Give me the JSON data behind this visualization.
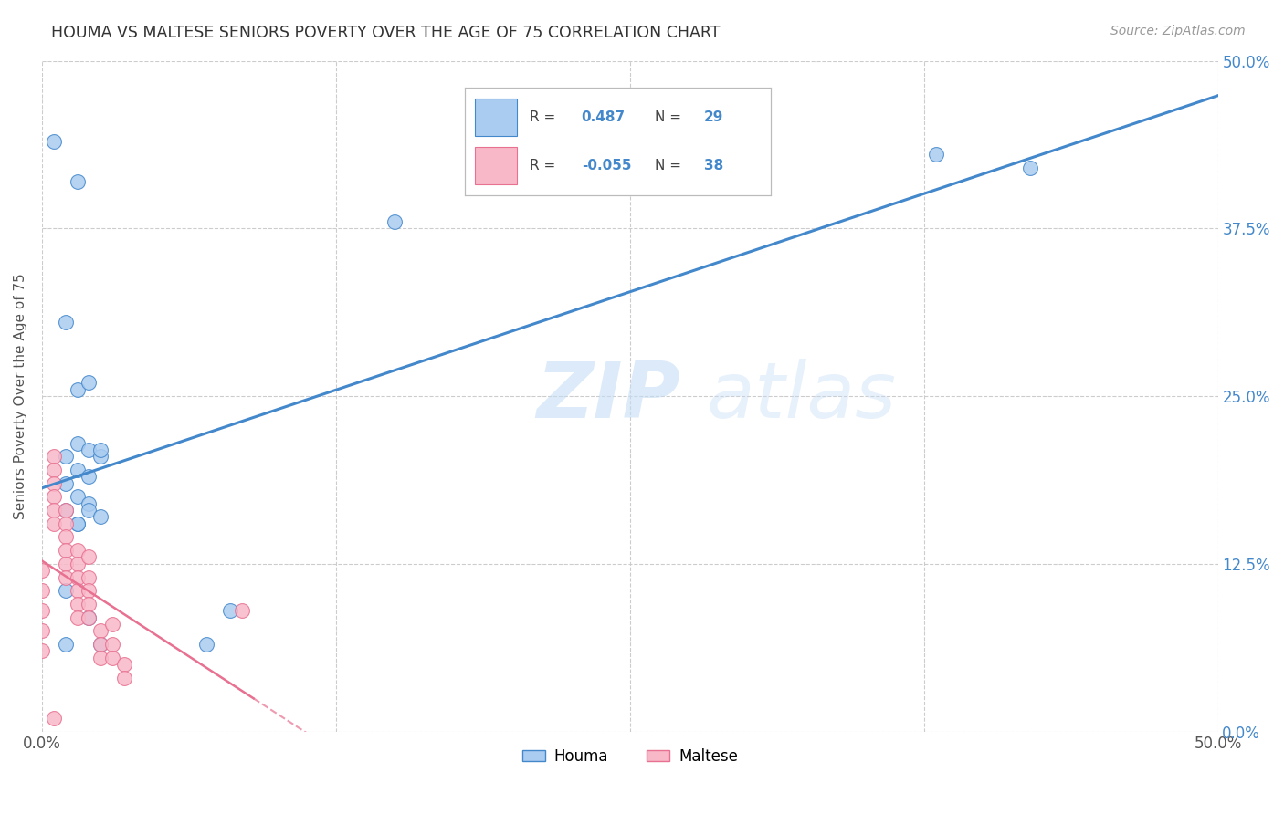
{
  "title": "HOUMA VS MALTESE SENIORS POVERTY OVER THE AGE OF 75 CORRELATION CHART",
  "source": "Source: ZipAtlas.com",
  "ylabel": "Seniors Poverty Over the Age of 75",
  "xlabel": "",
  "xlim": [
    0,
    0.5
  ],
  "ylim": [
    0,
    0.5
  ],
  "xtick_vals": [
    0.0,
    0.125,
    0.25,
    0.375,
    0.5
  ],
  "xtick_labels": [
    "0.0%",
    "",
    "",
    "",
    "50.0%"
  ],
  "ytick_vals": [
    0.0,
    0.125,
    0.25,
    0.375,
    0.5
  ],
  "ytick_labels_right": [
    "0.0%",
    "12.5%",
    "25.0%",
    "37.5%",
    "50.0%"
  ],
  "houma_R": 0.487,
  "houma_N": 29,
  "maltese_R": -0.055,
  "maltese_N": 38,
  "houma_color": "#aaccf0",
  "houma_line_color": "#4488cc",
  "maltese_color": "#f8b8c8",
  "maltese_line_color": "#e87090",
  "watermark_zip": "ZIP",
  "watermark_atlas": "atlas",
  "background_color": "#ffffff",
  "grid_color": "#cccccc",
  "houma_x": [
    0.005,
    0.015,
    0.01,
    0.015,
    0.02,
    0.015,
    0.02,
    0.025,
    0.01,
    0.015,
    0.02,
    0.01,
    0.015,
    0.02,
    0.025,
    0.01,
    0.015,
    0.02,
    0.025,
    0.01,
    0.015,
    0.02,
    0.01,
    0.025,
    0.07,
    0.15,
    0.38,
    0.42,
    0.08
  ],
  "houma_y": [
    0.44,
    0.41,
    0.305,
    0.255,
    0.26,
    0.215,
    0.21,
    0.205,
    0.205,
    0.195,
    0.19,
    0.185,
    0.175,
    0.17,
    0.21,
    0.165,
    0.155,
    0.165,
    0.16,
    0.105,
    0.155,
    0.085,
    0.065,
    0.065,
    0.065,
    0.38,
    0.43,
    0.42,
    0.09
  ],
  "maltese_x": [
    0.005,
    0.005,
    0.005,
    0.005,
    0.005,
    0.005,
    0.01,
    0.01,
    0.01,
    0.01,
    0.01,
    0.01,
    0.015,
    0.015,
    0.015,
    0.015,
    0.015,
    0.015,
    0.02,
    0.02,
    0.02,
    0.02,
    0.02,
    0.025,
    0.025,
    0.025,
    0.03,
    0.03,
    0.03,
    0.035,
    0.035,
    0.005,
    0.0,
    0.0,
    0.0,
    0.0,
    0.0,
    0.085
  ],
  "maltese_y": [
    0.205,
    0.195,
    0.185,
    0.175,
    0.165,
    0.155,
    0.165,
    0.155,
    0.145,
    0.135,
    0.125,
    0.115,
    0.135,
    0.125,
    0.115,
    0.105,
    0.095,
    0.085,
    0.13,
    0.115,
    0.105,
    0.095,
    0.085,
    0.075,
    0.065,
    0.055,
    0.08,
    0.065,
    0.055,
    0.05,
    0.04,
    0.01,
    0.12,
    0.105,
    0.09,
    0.075,
    0.06,
    0.09
  ]
}
